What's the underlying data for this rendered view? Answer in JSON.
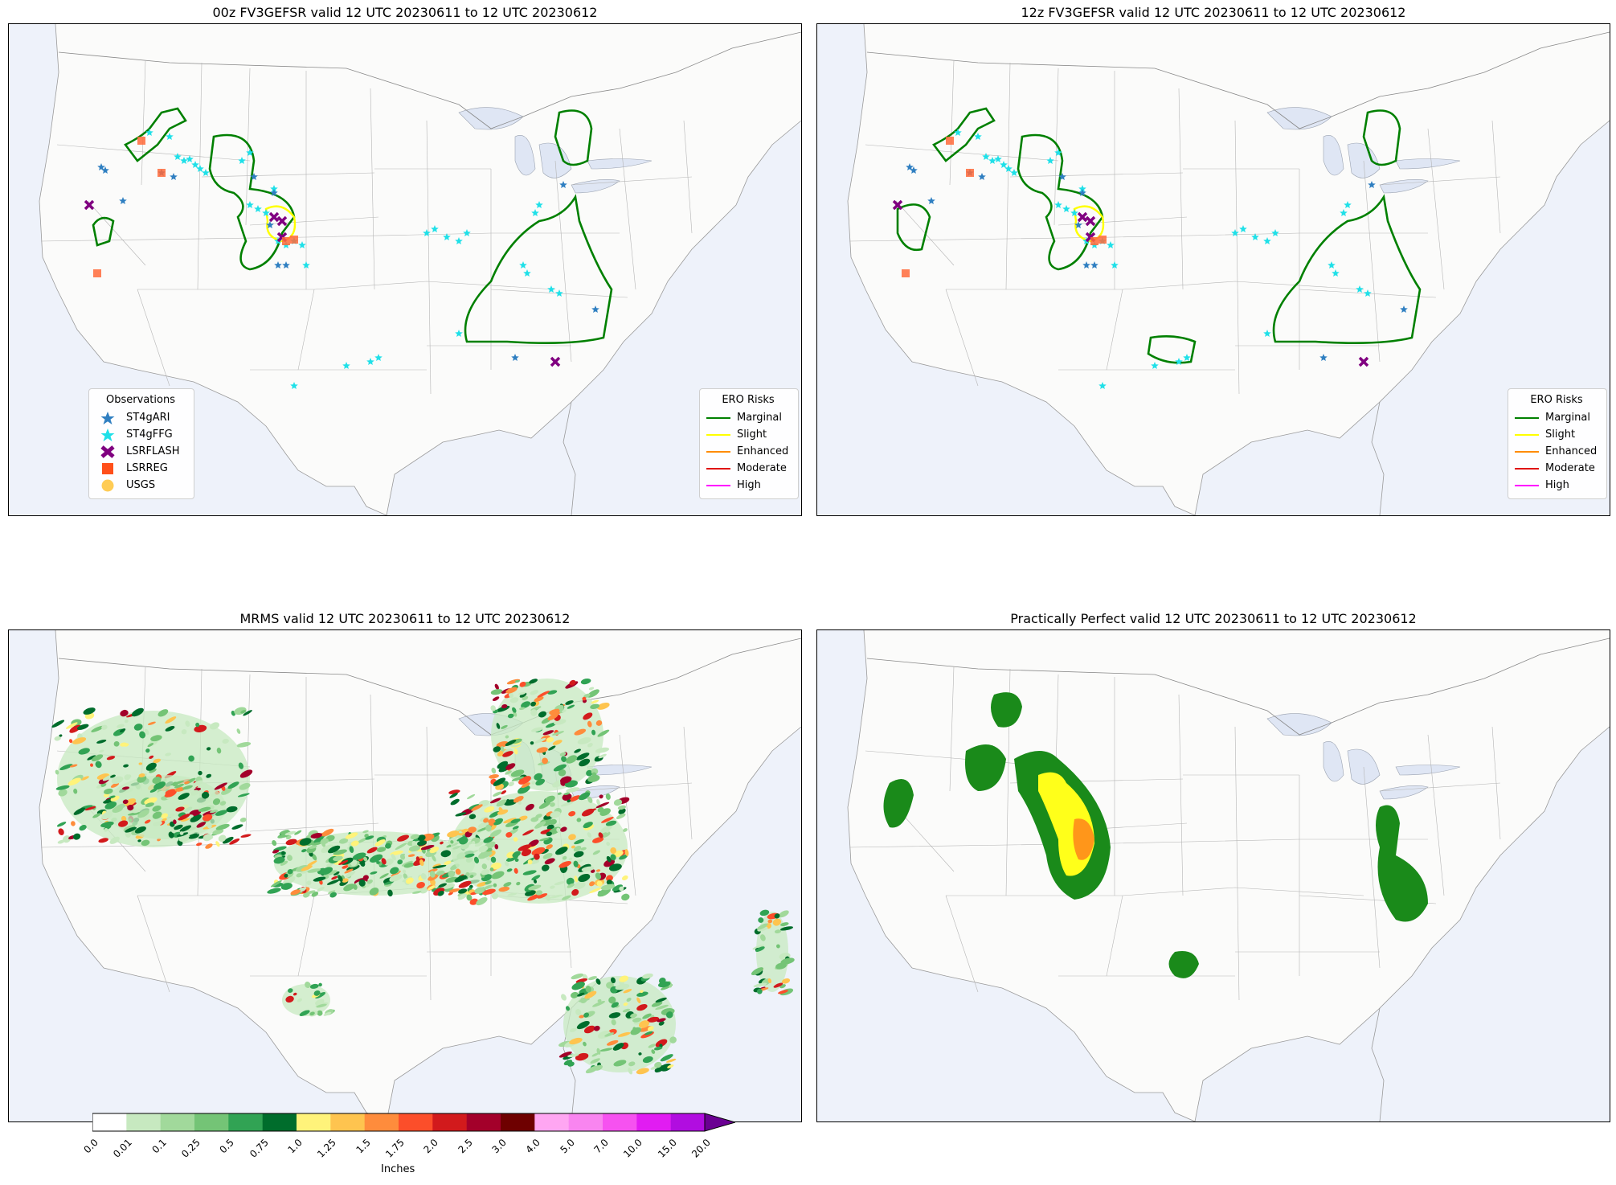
{
  "panels": [
    {
      "id": "p1",
      "title": "00z FV3GEFSR valid 12 UTC 20230611 to 12 UTC 20230612"
    },
    {
      "id": "p2",
      "title": "12z FV3GEFSR valid 12 UTC 20230611 to 12 UTC 20230612"
    },
    {
      "id": "p3",
      "title": "MRMS valid 12 UTC 20230611 to 12 UTC 20230612"
    },
    {
      "id": "p4",
      "title": "Practically Perfect valid 12 UTC 20230611 to 12 UTC 20230612"
    }
  ],
  "observations_legend": {
    "title": "Observations",
    "items": [
      {
        "label": "ST4gARI",
        "symbol": "star",
        "color": "#2f7fc1"
      },
      {
        "label": "ST4gFFG",
        "symbol": "star",
        "color": "#1fe0e8"
      },
      {
        "label": "LSRFLASH",
        "symbol": "x",
        "color": "#800080"
      },
      {
        "label": "LSRREG",
        "symbol": "square",
        "color": "#ff4f1a"
      },
      {
        "label": "USGS",
        "symbol": "circle",
        "color": "#ffcc55"
      }
    ]
  },
  "ero_legend": {
    "title": "ERO Risks",
    "items": [
      {
        "label": "Marginal",
        "color": "#008000"
      },
      {
        "label": "Slight",
        "color": "#ffff00"
      },
      {
        "label": "Enhanced",
        "color": "#ff8c00"
      },
      {
        "label": "Moderate",
        "color": "#e00000"
      },
      {
        "label": "High",
        "color": "#ff00ff"
      }
    ]
  },
  "colorbar": {
    "label": "Inches",
    "ticks": [
      "0.0",
      "0.01",
      "0.1",
      "0.25",
      "0.5",
      "0.75",
      "1.0",
      "1.25",
      "1.5",
      "1.75",
      "2.0",
      "2.5",
      "3.0",
      "4.0",
      "5.0",
      "7.0",
      "10.0",
      "15.0",
      "20.0"
    ],
    "colors": [
      "#ffffff",
      "#c7e9c0",
      "#a1d99b",
      "#74c476",
      "#31a354",
      "#006d2c",
      "#fff37a",
      "#fec44f",
      "#fe8c3c",
      "#fc4e2a",
      "#d21a1c",
      "#a3002a",
      "#6e0000",
      "#ffa6f2",
      "#f985f0",
      "#f652f0",
      "#e11cf2",
      "#b10de0"
    ],
    "extend_color": "#6a0092"
  }
}
